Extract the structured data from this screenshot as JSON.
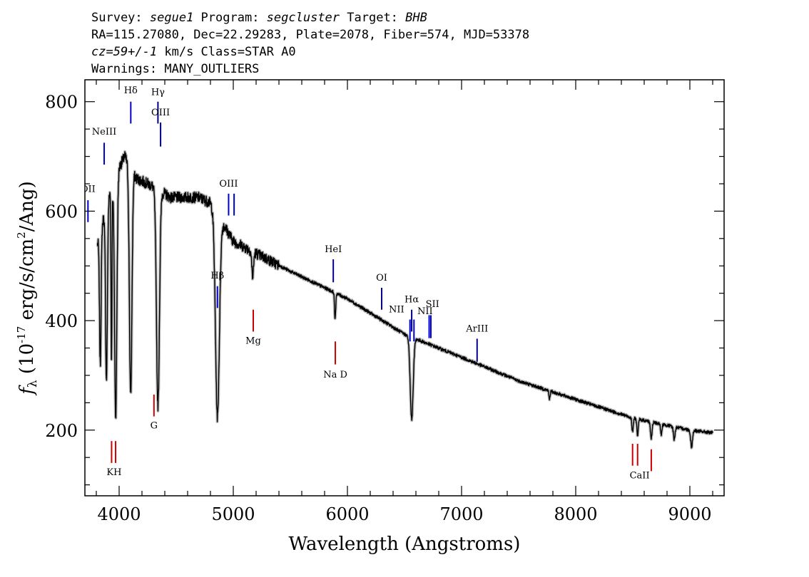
{
  "header": {
    "line1": {
      "survey_label": "Survey: ",
      "survey": "segue1",
      "program_label": " Program: ",
      "program": "segcluster",
      "target_label": " Target: ",
      "target": "BHB"
    },
    "line2": "RA=115.27080, Dec=22.29283, Plate=2078, Fiber=574, MJD=53378",
    "line3": {
      "cz": "cz=59+/-1",
      "rest": " km/s Class=STAR A0"
    },
    "line4": "Warnings: MANY_OUTLIERS"
  },
  "chart_data": {
    "type": "line",
    "xlabel": "Wavelength (Angstroms)",
    "ylabel": "f_λ (10^-17 erg/s/cm^2/Ang)",
    "xlim": [
      3700,
      9300
    ],
    "ylim": [
      80,
      840
    ],
    "x_ticks": [
      4000,
      5000,
      6000,
      7000,
      8000,
      9000
    ],
    "y_ticks": [
      200,
      400,
      600,
      800
    ],
    "continuum": {
      "x": [
        3810,
        3900,
        4000,
        4050,
        4150,
        4300,
        4450,
        4700,
        4800,
        5000,
        5500,
        6000,
        6500,
        7000,
        7500,
        8000,
        8500,
        9000,
        9200
      ],
      "y": [
        540,
        620,
        680,
        700,
        660,
        645,
        625,
        625,
        615,
        545,
        490,
        440,
        375,
        333,
        290,
        256,
        222,
        200,
        195
      ]
    },
    "absorption": [
      {
        "x": 3835,
        "depth": 240,
        "width": 7
      },
      {
        "x": 3889,
        "depth": 320,
        "width": 8
      },
      {
        "x": 3933,
        "depth": 320,
        "width": 4
      },
      {
        "x": 3970,
        "depth": 440,
        "width": 10
      },
      {
        "x": 4101,
        "depth": 420,
        "width": 11
      },
      {
        "x": 4340,
        "depth": 395,
        "width": 13
      },
      {
        "x": 4861,
        "depth": 370,
        "width": 17
      },
      {
        "x": 5170,
        "depth": 45,
        "width": 8
      },
      {
        "x": 5892,
        "depth": 50,
        "width": 5
      },
      {
        "x": 6563,
        "depth": 150,
        "width": 13
      },
      {
        "x": 7770,
        "depth": 15,
        "width": 5
      },
      {
        "x": 8498,
        "depth": 25,
        "width": 6
      },
      {
        "x": 8542,
        "depth": 30,
        "width": 6
      },
      {
        "x": 8662,
        "depth": 30,
        "width": 7
      },
      {
        "x": 8750,
        "depth": 20,
        "width": 6
      },
      {
        "x": 8863,
        "depth": 23,
        "width": 7
      },
      {
        "x": 9015,
        "depth": 30,
        "width": 8
      }
    ],
    "emission_lines": [
      {
        "label": "OII",
        "x": 3727,
        "y1": 580,
        "y2": 620,
        "label_y": 635,
        "color": "#0000cc"
      },
      {
        "label": "NeIII",
        "x": 3869,
        "y1": 685,
        "y2": 725,
        "label_y": 740,
        "color": "#0000cc"
      },
      {
        "label": "Hδ",
        "x": 4102,
        "y1": 760,
        "y2": 800,
        "label_y": 815,
        "color": "#0000cc"
      },
      {
        "label": "Hγ",
        "x": 4340,
        "y1": 760,
        "y2": 800,
        "label_y": 812,
        "color": "#000088"
      },
      {
        "label": "OIII",
        "x": 4363,
        "y1": 718,
        "y2": 762,
        "label_y": 775,
        "color": "#000088"
      },
      {
        "label": "Hβ",
        "x": 4861,
        "y1": 423,
        "y2": 463,
        "label_y": 477,
        "color": "#0000cc"
      },
      {
        "label": "OIII",
        "x": 4959,
        "y1": 592,
        "y2": 632,
        "label_y": 645,
        "color": "#0000cc"
      },
      {
        "label": "OIII",
        "x": 5007,
        "y1": 592,
        "y2": 632,
        "color": "#0000cc"
      },
      {
        "label": "HeI",
        "x": 5876,
        "y1": 470,
        "y2": 512,
        "label_y": 525,
        "color": "#000088"
      },
      {
        "label": "OI",
        "x": 6300,
        "y1": 420,
        "y2": 460,
        "label_y": 473,
        "color": "#000088"
      },
      {
        "label": "NII",
        "x": 6548,
        "y1": 362,
        "y2": 402,
        "label_y": 415,
        "label_x": 6430,
        "color": "#0000cc"
      },
      {
        "label": "Hα",
        "x": 6563,
        "y1": 380,
        "y2": 420,
        "label_y": 433,
        "color": "#000088"
      },
      {
        "label": "NII",
        "x": 6583,
        "y1": 362,
        "y2": 402,
        "color": "#0000cc"
      },
      {
        "label": "NII",
        "x": 6716,
        "y1": 368,
        "y2": 410,
        "label_y": 412,
        "label_x": 6680,
        "color": "#0000cc"
      },
      {
        "label": "SII",
        "x": 6731,
        "y1": 368,
        "y2": 410,
        "label_y": 425,
        "label_x": 6745,
        "color": "#0000cc"
      },
      {
        "label": "ArIII",
        "x": 7136,
        "y1": 325,
        "y2": 367,
        "label_y": 380,
        "color": "#000088"
      }
    ],
    "absorption_lines": [
      {
        "label": "K",
        "x": 3934,
        "y1": 140,
        "y2": 180,
        "label_y": 118,
        "label_x": 3920,
        "color": "#cc0000"
      },
      {
        "label": "H",
        "x": 3969,
        "y1": 140,
        "y2": 180,
        "label_y": 118,
        "label_x": 3986,
        "color": "#cc0000"
      },
      {
        "label": "G",
        "x": 4305,
        "y1": 225,
        "y2": 265,
        "label_y": 203,
        "color": "#cc0000"
      },
      {
        "label": "Mg",
        "x": 5175,
        "y1": 380,
        "y2": 420,
        "label_y": 358,
        "color": "#cc0000"
      },
      {
        "label": "Na D",
        "x": 5894,
        "y1": 320,
        "y2": 362,
        "label_y": 296,
        "color": "#cc0000"
      },
      {
        "label": "CaII",
        "x": 8498,
        "y1": 135,
        "y2": 175,
        "label_y": 112,
        "label_x": 8560,
        "color": "#cc0000"
      },
      {
        "label": "",
        "x": 8542,
        "y1": 135,
        "y2": 175,
        "color": "#cc0000"
      },
      {
        "label": "",
        "x": 8662,
        "y1": 125,
        "y2": 165,
        "color": "#cc0000"
      }
    ]
  }
}
